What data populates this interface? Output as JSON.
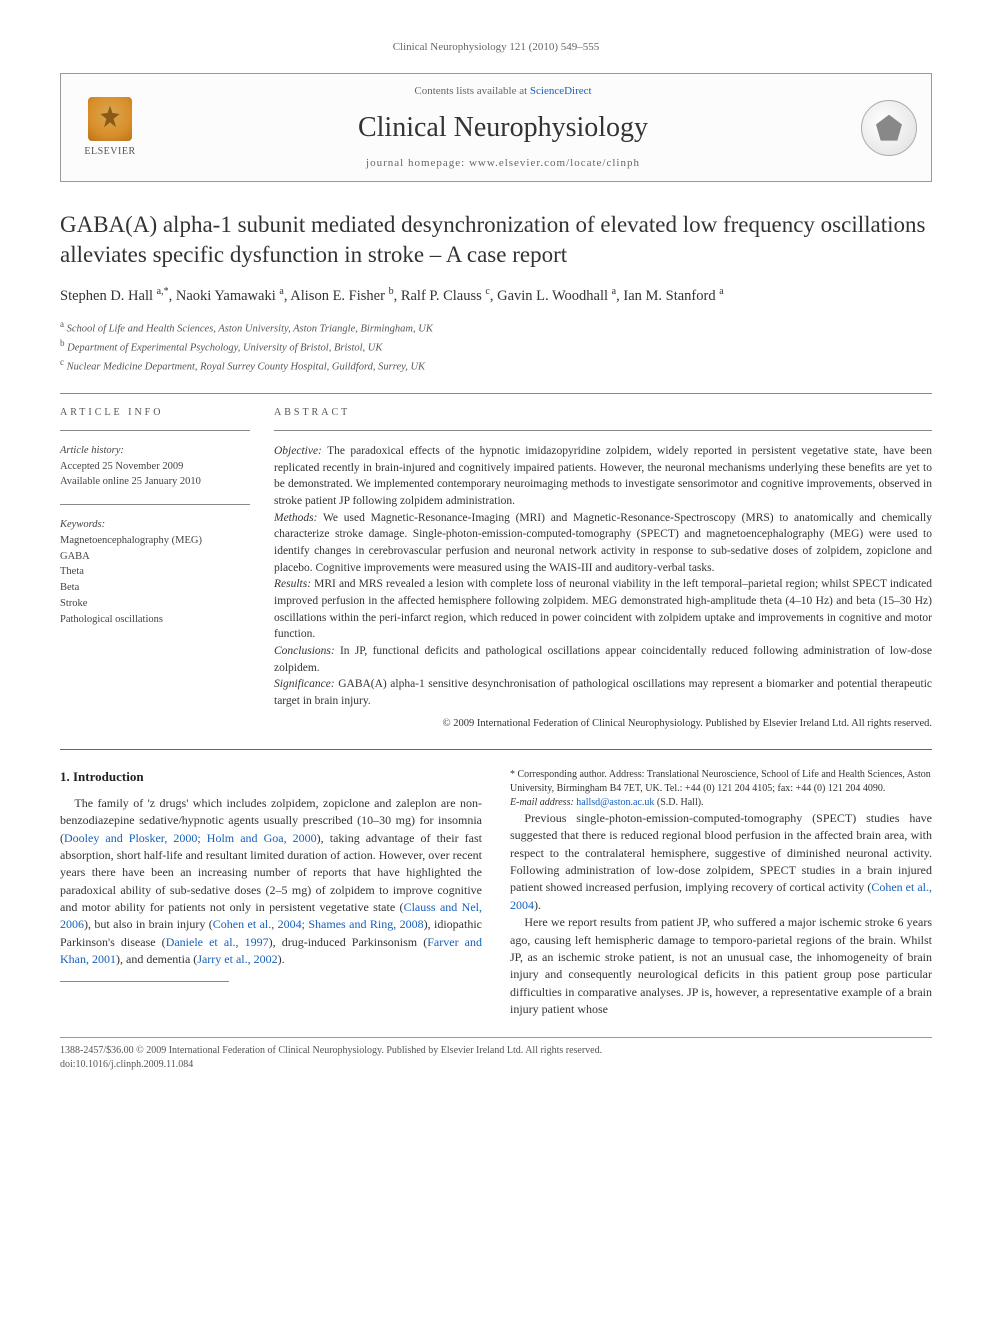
{
  "running_header": "Clinical Neurophysiology 121 (2010) 549–555",
  "journal_box": {
    "publisher": "ELSEVIER",
    "contents_prefix": "Contents lists available at ",
    "contents_link": "ScienceDirect",
    "journal_title": "Clinical Neurophysiology",
    "homepage_label": "journal homepage: www.elsevier.com/locate/clinph"
  },
  "title": "GABA(A) alpha-1 subunit mediated desynchronization of elevated low frequency oscillations alleviates specific dysfunction in stroke – A case report",
  "authors_html": "Stephen D. Hall <sup>a,*</sup>, Naoki Yamawaki <sup>a</sup>, Alison E. Fisher <sup>b</sup>, Ralf P. Clauss <sup>c</sup>, Gavin L. Woodhall <sup>a</sup>, Ian M. Stanford <sup>a</sup>",
  "affiliations": [
    {
      "sup": "a",
      "text": "School of Life and Health Sciences, Aston University, Aston Triangle, Birmingham, UK"
    },
    {
      "sup": "b",
      "text": "Department of Experimental Psychology, University of Bristol, Bristol, UK"
    },
    {
      "sup": "c",
      "text": "Nuclear Medicine Department, Royal Surrey County Hospital, Guildford, Surrey, UK"
    }
  ],
  "article_info": {
    "heading": "ARTICLE INFO",
    "history_heading": "Article history:",
    "accepted": "Accepted 25 November 2009",
    "online": "Available online 25 January 2010",
    "keywords_heading": "Keywords:",
    "keywords": [
      "Magnetoencephalography (MEG)",
      "GABA",
      "Theta",
      "Beta",
      "Stroke",
      "Pathological oscillations"
    ]
  },
  "abstract": {
    "heading": "ABSTRACT",
    "paragraphs": [
      {
        "label": "Objective:",
        "text": " The paradoxical effects of the hypnotic imidazopyridine zolpidem, widely reported in persistent vegetative state, have been replicated recently in brain-injured and cognitively impaired patients. However, the neuronal mechanisms underlying these benefits are yet to be demonstrated. We implemented contemporary neuroimaging methods to investigate sensorimotor and cognitive improvements, observed in stroke patient JP following zolpidem administration."
      },
      {
        "label": "Methods:",
        "text": " We used Magnetic-Resonance-Imaging (MRI) and Magnetic-Resonance-Spectroscopy (MRS) to anatomically and chemically characterize stroke damage. Single-photon-emission-computed-tomography (SPECT) and magnetoencephalography (MEG) were used to identify changes in cerebrovascular perfusion and neuronal network activity in response to sub-sedative doses of zolpidem, zopiclone and placebo. Cognitive improvements were measured using the WAIS-III and auditory-verbal tasks."
      },
      {
        "label": "Results:",
        "text": " MRI and MRS revealed a lesion with complete loss of neuronal viability in the left temporal–parietal region; whilst SPECT indicated improved perfusion in the affected hemisphere following zolpidem. MEG demonstrated high-amplitude theta (4–10 Hz) and beta (15–30 Hz) oscillations within the peri-infarct region, which reduced in power coincident with zolpidem uptake and improvements in cognitive and motor function."
      },
      {
        "label": "Conclusions:",
        "text": " In JP, functional deficits and pathological oscillations appear coincidentally reduced following administration of low-dose zolpidem."
      },
      {
        "label": "Significance:",
        "text": " GABA(A) alpha-1 sensitive desynchronisation of pathological oscillations may represent a biomarker and potential therapeutic target in brain injury."
      }
    ],
    "copyright": "© 2009 International Federation of Clinical Neurophysiology. Published by Elsevier Ireland Ltd. All rights reserved."
  },
  "body": {
    "section_heading": "1. Introduction",
    "p1a": "The family of 'z drugs' which includes zolpidem, zopiclone and zaleplon are non-benzodiazepine sedative/hypnotic agents usually prescribed (10–30 mg) for insomnia (",
    "p1_link1": "Dooley and Plosker, 2000; Holm and Goa, 2000",
    "p1b": "), taking advantage of their fast absorption, short half-life and resultant limited duration of action. However, over recent years there have been an increasing number of reports that have highlighted the paradoxical ability of sub-sedative doses (2–5 mg) of zolpidem to improve cognitive and motor ability for patients not only in persistent vegetative state (",
    "p1_link2": "Clauss and Nel, 2006",
    "p1c": "), but also in brain injury (",
    "p1_link3": "Cohen et al., 2004; Shames and Ring, 2008",
    "p1d": "), idiopathic Parkinson's disease (",
    "p1_link4": "Daniele et al., 1997",
    "p1e": "), drug-induced Parkinsonism (",
    "p1_link5": "Farver and Khan, 2001",
    "p1f": "), and dementia (",
    "p1_link6": "Jarry et al., 2002",
    "p1g": ").",
    "p2a": "Previous single-photon-emission-computed-tomography (SPECT) studies have suggested that there is reduced regional blood perfusion in the affected brain area, with respect to the contralateral hemisphere, suggestive of diminished neuronal activity. Following administration of low-dose zolpidem, SPECT studies in a brain injured patient showed increased perfusion, implying recovery of cortical activity (",
    "p2_link1": "Cohen et al., 2004",
    "p2b": ").",
    "p3": "Here we report results from patient JP, who suffered a major ischemic stroke 6 years ago, causing left hemispheric damage to temporo-parietal regions of the brain. Whilst JP, as an ischemic stroke patient, is not an unusual case, the inhomogeneity of brain injury and consequently neurological deficits in this patient group pose particular difficulties in comparative analyses. JP is, however, a representative example of a brain injury patient whose"
  },
  "corresponding": {
    "star": "*",
    "label": "Corresponding author. Address: Translational Neuroscience, School of Life and Health Sciences, Aston University, Birmingham B4 7ET, UK. Tel.: +44 (0) 121 204 4105; fax: +44 (0) 121 204 4090.",
    "email_label": "E-mail address:",
    "email": "hallsd@aston.ac.uk",
    "email_suffix": "(S.D. Hall)."
  },
  "footer": {
    "line1": "1388-2457/$36.00 © 2009 International Federation of Clinical Neurophysiology. Published by Elsevier Ireland Ltd. All rights reserved.",
    "line2": "doi:10.1016/j.clinph.2009.11.084"
  },
  "colors": {
    "link": "#1560bd",
    "text": "#333333",
    "rule": "#888888"
  }
}
